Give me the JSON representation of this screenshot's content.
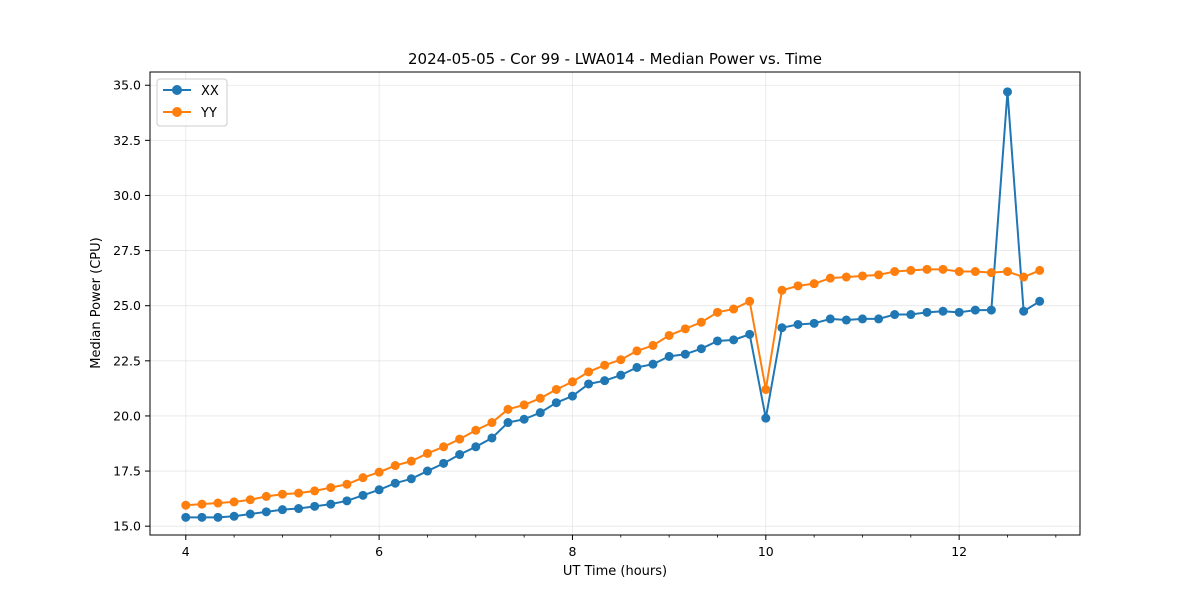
{
  "chart_data": {
    "type": "line",
    "title": "2024-05-05 - Cor 99 - LWA014 - Median Power vs. Time",
    "xlabel": "UT Time (hours)",
    "ylabel": "Median Power (CPU)",
    "xlim": [
      3.63,
      13.25
    ],
    "ylim": [
      14.6,
      35.6
    ],
    "xticks": [
      4,
      6,
      8,
      10,
      12
    ],
    "xtick_labels": [
      "4",
      "6",
      "8",
      "10",
      "12"
    ],
    "yticks": [
      15.0,
      17.5,
      20.0,
      22.5,
      25.0,
      27.5,
      30.0,
      32.5,
      35.0
    ],
    "ytick_labels": [
      "15.0",
      "17.5",
      "20.0",
      "22.5",
      "25.0",
      "27.5",
      "30.0",
      "32.5",
      "35.0"
    ],
    "grid": true,
    "legend_position": "top-left",
    "x": [
      4.0,
      4.167,
      4.333,
      4.5,
      4.667,
      4.833,
      5.0,
      5.167,
      5.333,
      5.5,
      5.667,
      5.833,
      6.0,
      6.167,
      6.333,
      6.5,
      6.667,
      6.833,
      7.0,
      7.167,
      7.333,
      7.5,
      7.667,
      7.833,
      8.0,
      8.167,
      8.333,
      8.5,
      8.667,
      8.833,
      9.0,
      9.167,
      9.333,
      9.5,
      9.667,
      9.833,
      10.0,
      10.167,
      10.333,
      10.5,
      10.667,
      10.833,
      11.0,
      11.167,
      11.333,
      11.5,
      11.667,
      11.833,
      12.0,
      12.167,
      12.333,
      12.5,
      12.667,
      12.833
    ],
    "series": [
      {
        "name": "XX",
        "color": "#1f77b4",
        "values": [
          15.4,
          15.4,
          15.4,
          15.45,
          15.55,
          15.65,
          15.75,
          15.8,
          15.9,
          16.0,
          16.15,
          16.4,
          16.65,
          16.95,
          17.15,
          17.5,
          17.85,
          18.25,
          18.6,
          19.0,
          19.7,
          19.85,
          20.15,
          20.6,
          20.9,
          21.45,
          21.6,
          21.85,
          22.2,
          22.35,
          22.7,
          22.8,
          23.05,
          23.4,
          23.45,
          23.7,
          19.9,
          24.0,
          24.15,
          24.2,
          24.4,
          24.35,
          24.4,
          24.4,
          24.6,
          24.6,
          24.7,
          24.75,
          24.7,
          24.8,
          24.8,
          34.7,
          24.75,
          25.2
        ]
      },
      {
        "name": "YY",
        "color": "#ff7f0e",
        "values": [
          15.95,
          16.0,
          16.05,
          16.1,
          16.2,
          16.35,
          16.45,
          16.5,
          16.6,
          16.75,
          16.9,
          17.2,
          17.45,
          17.75,
          17.95,
          18.3,
          18.6,
          18.95,
          19.35,
          19.7,
          20.3,
          20.5,
          20.8,
          21.2,
          21.55,
          22.0,
          22.3,
          22.55,
          22.95,
          23.2,
          23.65,
          23.95,
          24.25,
          24.7,
          24.85,
          25.2,
          21.2,
          25.7,
          25.9,
          26.0,
          26.25,
          26.3,
          26.35,
          26.4,
          26.55,
          26.6,
          26.65,
          26.65,
          26.55,
          26.55,
          26.5,
          26.55,
          26.3,
          26.6
        ]
      }
    ]
  }
}
